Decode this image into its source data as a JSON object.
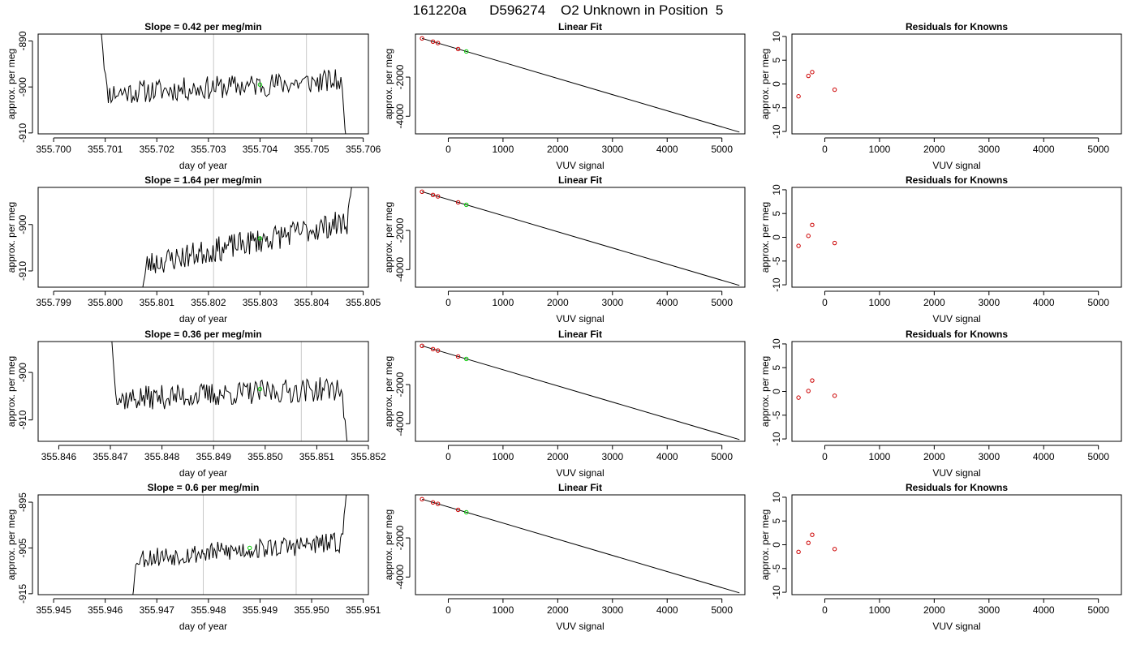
{
  "figure_title": "161220a      D596274    O2 Unknown in Position  5",
  "colors": {
    "trace": "#000000",
    "known_points": "#cc0000",
    "unknown_point": "#00cc00",
    "time_marker": "#c8c8c8"
  },
  "chart_data": [
    {
      "type": "line",
      "title": "Slope =  0.42  per meg/min",
      "xlabel": "day of year",
      "ylabel": "approx. per meg",
      "xlim": [
        355.6997,
        355.7061
      ],
      "ylim": [
        -910.2,
        -888.5
      ],
      "x_ticks": [
        "355.700",
        "355.701",
        "355.702",
        "355.703",
        "355.704",
        "355.705",
        "355.706"
      ],
      "y_ticks": [
        "-910",
        "-900",
        "-890"
      ],
      "vertical_markers": [
        355.7031,
        355.7049
      ],
      "unknown_point": {
        "x": 355.704,
        "y": -899.5
      },
      "series": [
        {
          "x_start": 355.7009,
          "x_end": 355.7057,
          "level": -900.0,
          "slope_per_day": 605,
          "noise": 1.6,
          "edge_start": -885,
          "edge_end": -915,
          "seed": 11
        }
      ]
    },
    {
      "type": "scatter",
      "title": "Linear Fit",
      "xlabel": "VUV signal",
      "ylabel": "approx. per meg",
      "xlim": [
        -600,
        5420
      ],
      "ylim": [
        -4900,
        200
      ],
      "x_ticks": [
        "0",
        "1000",
        "2000",
        "3000",
        "4000",
        "5000"
      ],
      "y_ticks": [
        "-4000",
        "-2000"
      ],
      "fit_line": {
        "x0": -480,
        "y0": -20,
        "x1": 5320,
        "y1": -4810
      },
      "known_points": [
        {
          "x": -480,
          "y": -20
        },
        {
          "x": -280,
          "y": -185
        },
        {
          "x": -190,
          "y": -260
        },
        {
          "x": 180,
          "y": -565
        }
      ],
      "unknown_point": {
        "x": 330,
        "y": -690
      }
    },
    {
      "type": "scatter",
      "title": "Residuals for Knowns",
      "xlabel": "VUV signal",
      "ylabel": "approx. per meg",
      "xlim": [
        -600,
        5420
      ],
      "ylim": [
        -10.5,
        10.5
      ],
      "x_ticks": [
        "0",
        "1000",
        "2000",
        "3000",
        "4000",
        "5000"
      ],
      "y_ticks": [
        "-10",
        "-5",
        "0",
        "5",
        "10"
      ],
      "points": [
        {
          "x": -480,
          "y": -2.6
        },
        {
          "x": -300,
          "y": 1.7
        },
        {
          "x": -230,
          "y": 2.5
        },
        {
          "x": 180,
          "y": -1.2
        }
      ]
    },
    {
      "type": "line",
      "title": "Slope =  1.64  per meg/min",
      "xlabel": "day of year",
      "ylabel": "approx. per meg",
      "xlim": [
        355.7987,
        355.8051
      ],
      "ylim": [
        -913.5,
        -892.0
      ],
      "x_ticks": [
        "355.799",
        "355.800",
        "355.801",
        "355.802",
        "355.803",
        "355.804",
        "355.805"
      ],
      "y_ticks": [
        "-910",
        "-900"
      ],
      "vertical_markers": [
        355.8021,
        355.8039
      ],
      "unknown_point": {
        "x": 355.803,
        "y": -903.0
      },
      "series": [
        {
          "x_start": 355.8007,
          "x_end": 355.8048,
          "level": -904.0,
          "slope_per_day": 2360,
          "noise": 1.7,
          "edge_start": -915,
          "edge_end": -890,
          "seed": 23
        }
      ]
    },
    {
      "type": "scatter",
      "title": "Linear Fit",
      "xlabel": "VUV signal",
      "ylabel": "approx. per meg",
      "xlim": [
        -600,
        5420
      ],
      "ylim": [
        -4900,
        200
      ],
      "x_ticks": [
        "0",
        "1000",
        "2000",
        "3000",
        "4000",
        "5000"
      ],
      "y_ticks": [
        "-4000",
        "-2000"
      ],
      "fit_line": {
        "x0": -480,
        "y0": -20,
        "x1": 5320,
        "y1": -4810
      },
      "known_points": [
        {
          "x": -480,
          "y": -20
        },
        {
          "x": -280,
          "y": -185
        },
        {
          "x": -190,
          "y": -260
        },
        {
          "x": 180,
          "y": -565
        }
      ],
      "unknown_point": {
        "x": 330,
        "y": -690
      }
    },
    {
      "type": "scatter",
      "title": "Residuals for Knowns",
      "xlabel": "VUV signal",
      "ylabel": "approx. per meg",
      "xlim": [
        -600,
        5420
      ],
      "ylim": [
        -10.5,
        10.5
      ],
      "x_ticks": [
        "0",
        "1000",
        "2000",
        "3000",
        "4000",
        "5000"
      ],
      "y_ticks": [
        "-10",
        "-5",
        "0",
        "5",
        "10"
      ],
      "points": [
        {
          "x": -480,
          "y": -1.8
        },
        {
          "x": -300,
          "y": 0.3
        },
        {
          "x": -230,
          "y": 2.6
        },
        {
          "x": 180,
          "y": -1.2
        }
      ]
    },
    {
      "type": "line",
      "title": "Slope =  0.36  per meg/min",
      "xlabel": "day of year",
      "ylabel": "approx. per meg",
      "xlim": [
        355.8456,
        355.852
      ],
      "ylim": [
        -914.5,
        -893.5
      ],
      "x_ticks": [
        "355.846",
        "355.847",
        "355.848",
        "355.849",
        "355.850",
        "355.851",
        "355.852"
      ],
      "y_ticks": [
        "-910",
        "-900"
      ],
      "vertical_markers": [
        355.849,
        355.8507
      ],
      "unknown_point": {
        "x": 355.8499,
        "y": -903.5
      },
      "series": [
        {
          "x_start": 355.847,
          "x_end": 355.8516,
          "level": -904.5,
          "slope_per_day": 520,
          "noise": 1.6,
          "edge_start": -890,
          "edge_end": -916,
          "seed": 37
        }
      ]
    },
    {
      "type": "scatter",
      "title": "Linear Fit",
      "xlabel": "VUV signal",
      "ylabel": "approx. per meg",
      "xlim": [
        -600,
        5420
      ],
      "ylim": [
        -4900,
        200
      ],
      "x_ticks": [
        "0",
        "1000",
        "2000",
        "3000",
        "4000",
        "5000"
      ],
      "y_ticks": [
        "-4000",
        "-2000"
      ],
      "fit_line": {
        "x0": -480,
        "y0": -20,
        "x1": 5320,
        "y1": -4810
      },
      "known_points": [
        {
          "x": -480,
          "y": -20
        },
        {
          "x": -280,
          "y": -185
        },
        {
          "x": -190,
          "y": -260
        },
        {
          "x": 180,
          "y": -565
        }
      ],
      "unknown_point": {
        "x": 330,
        "y": -690
      }
    },
    {
      "type": "scatter",
      "title": "Residuals for Knowns",
      "xlabel": "VUV signal",
      "ylabel": "approx. per meg",
      "xlim": [
        -600,
        5420
      ],
      "ylim": [
        -10.5,
        10.5
      ],
      "x_ticks": [
        "0",
        "1000",
        "2000",
        "3000",
        "4000",
        "5000"
      ],
      "y_ticks": [
        "-10",
        "-5",
        "0",
        "5",
        "10"
      ],
      "points": [
        {
          "x": -480,
          "y": -1.3
        },
        {
          "x": -300,
          "y": 0.1
        },
        {
          "x": -230,
          "y": 2.3
        },
        {
          "x": 180,
          "y": -0.9
        }
      ]
    },
    {
      "type": "line",
      "title": "Slope =  0.6  per meg/min",
      "xlabel": "day of year",
      "ylabel": "approx. per meg",
      "xlim": [
        355.9447,
        355.9511
      ],
      "ylim": [
        -915.2,
        -893.4
      ],
      "x_ticks": [
        "355.945",
        "355.946",
        "355.947",
        "355.948",
        "355.949",
        "355.950",
        "355.951"
      ],
      "y_ticks": [
        "-915",
        "-905",
        "-895"
      ],
      "vertical_markers": [
        355.9479,
        355.9497
      ],
      "unknown_point": {
        "x": 355.9488,
        "y": -905.0
      },
      "series": [
        {
          "x_start": 355.9465,
          "x_end": 355.9507,
          "level": -905.5,
          "slope_per_day": 865,
          "noise": 1.4,
          "edge_start": -918,
          "edge_end": -890,
          "seed": 53
        }
      ]
    },
    {
      "type": "scatter",
      "title": "Linear Fit",
      "xlabel": "VUV signal",
      "ylabel": "approx. per meg",
      "xlim": [
        -600,
        5420
      ],
      "ylim": [
        -4900,
        200
      ],
      "x_ticks": [
        "0",
        "1000",
        "2000",
        "3000",
        "4000",
        "5000"
      ],
      "y_ticks": [
        "-4000",
        "-2000"
      ],
      "fit_line": {
        "x0": -480,
        "y0": -20,
        "x1": 5320,
        "y1": -4810
      },
      "known_points": [
        {
          "x": -480,
          "y": -20
        },
        {
          "x": -280,
          "y": -185
        },
        {
          "x": -190,
          "y": -260
        },
        {
          "x": 180,
          "y": -565
        }
      ],
      "unknown_point": {
        "x": 330,
        "y": -690
      }
    },
    {
      "type": "scatter",
      "title": "Residuals for Knowns",
      "xlabel": "VUV signal",
      "ylabel": "approx. per meg",
      "xlim": [
        -600,
        5420
      ],
      "ylim": [
        -10.5,
        10.5
      ],
      "x_ticks": [
        "0",
        "1000",
        "2000",
        "3000",
        "4000",
        "5000"
      ],
      "y_ticks": [
        "-10",
        "-5",
        "0",
        "5",
        "10"
      ],
      "points": [
        {
          "x": -480,
          "y": -1.5
        },
        {
          "x": -300,
          "y": 0.4
        },
        {
          "x": -230,
          "y": 2.1
        },
        {
          "x": 180,
          "y": -0.9
        }
      ]
    }
  ]
}
